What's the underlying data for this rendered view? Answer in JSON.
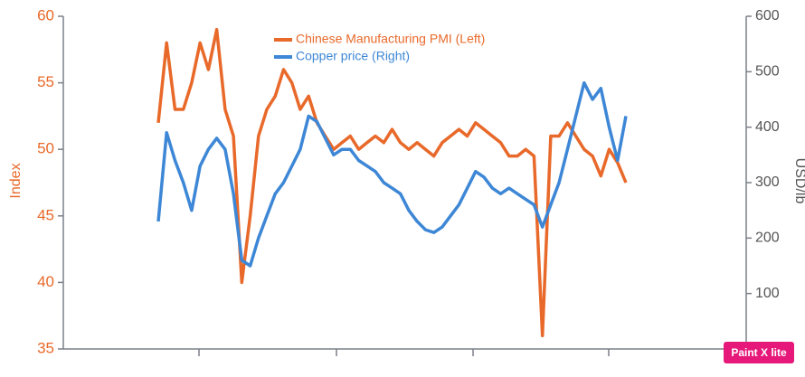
{
  "chart_data": {
    "type": "line",
    "categories": [
      null,
      null,
      null,
      null,
      null,
      null,
      null,
      null,
      null,
      null,
      null,
      null,
      null,
      null,
      null,
      null,
      null,
      null,
      null,
      null,
      null,
      null,
      null,
      null,
      null,
      null,
      null,
      null,
      null,
      null,
      null,
      null,
      null,
      null,
      null,
      null,
      null,
      null,
      null,
      null,
      null,
      null,
      null,
      null,
      null,
      null,
      null,
      null,
      null,
      null,
      null,
      null,
      null,
      null,
      null,
      null,
      null
    ],
    "series": [
      {
        "name": "Chinese Manufacturing PMI (Left)",
        "color": "#e8692a",
        "axis": "y",
        "values": [
          52,
          58,
          53,
          53,
          55,
          58,
          56,
          59,
          53,
          51,
          40,
          45,
          51,
          53,
          54,
          56,
          55,
          53,
          54,
          52,
          51,
          50,
          50.5,
          51,
          50,
          50.5,
          51,
          50.5,
          51.5,
          50.5,
          50,
          50.5,
          50,
          49.5,
          50.5,
          51,
          51.5,
          51,
          52,
          51.5,
          51,
          50.5,
          49.5,
          49.5,
          50,
          49.5,
          36,
          51,
          51,
          52,
          51,
          50,
          49.5,
          48,
          50,
          49,
          47.5
        ]
      },
      {
        "name": "Copper price (Right)",
        "color": "#3d87d6",
        "axis": "y2",
        "values": [
          230,
          390,
          340,
          300,
          250,
          330,
          360,
          380,
          360,
          280,
          160,
          150,
          200,
          240,
          280,
          300,
          330,
          360,
          420,
          410,
          380,
          350,
          360,
          360,
          340,
          330,
          320,
          300,
          290,
          280,
          250,
          230,
          215,
          210,
          220,
          240,
          260,
          290,
          320,
          310,
          290,
          280,
          290,
          280,
          270,
          260,
          220,
          260,
          300,
          360,
          420,
          480,
          450,
          470,
          400,
          340,
          420
        ]
      }
    ],
    "ylabel": "Index",
    "y2label": "USD/lb",
    "ylim": [
      35,
      60
    ],
    "yticks": [
      35,
      40,
      45,
      50,
      55,
      60
    ],
    "y2lim": [
      0,
      600
    ],
    "y2ticks": [
      100,
      200,
      300,
      400,
      500,
      600
    ],
    "watermark": "Paint X lite"
  }
}
